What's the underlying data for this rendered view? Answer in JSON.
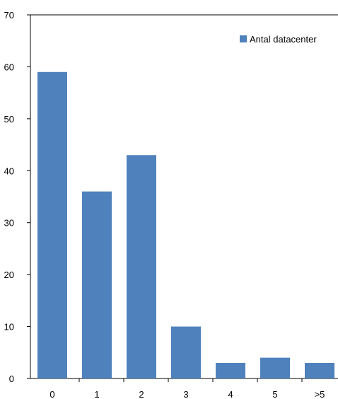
{
  "chart_data": {
    "type": "bar",
    "categories": [
      "0",
      "1",
      "2",
      "3",
      "4",
      "5",
      ">5"
    ],
    "series": [
      {
        "name": "Antal datacenter",
        "values": [
          59,
          36,
          43,
          10,
          3,
          4,
          3
        ],
        "color": "#4f81bd"
      }
    ],
    "ylim": [
      0,
      70
    ],
    "yticks": [
      0,
      10,
      20,
      30,
      40,
      50,
      60,
      70
    ],
    "grid": false,
    "legend_position": "top-right",
    "title": "",
    "xlabel": "",
    "ylabel": ""
  }
}
